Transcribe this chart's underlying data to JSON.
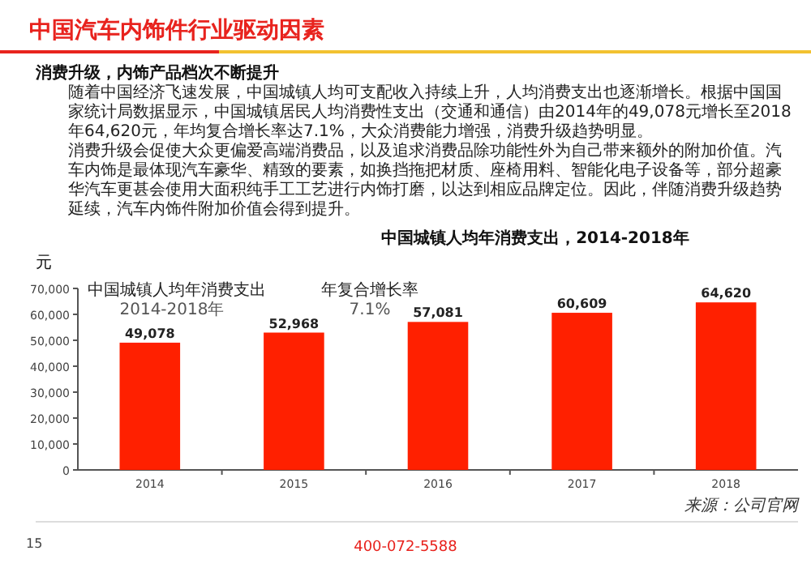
{
  "chart_data": {
    "type": "bar",
    "title": "中国城镇人均年消费支出，2014-2018年",
    "ylabel": "元",
    "categories": [
      "2014",
      "2015",
      "2016",
      "2017",
      "2018"
    ],
    "values": [
      49078,
      52968,
      57081,
      60609,
      64620
    ],
    "value_labels": [
      "49,078",
      "52,968",
      "57,081",
      "60,609",
      "64,620"
    ],
    "color": "#ff2000",
    "ylim": [
      0,
      70000
    ],
    "yticks": [
      0,
      {
        "value": 10000,
        "label": "10,000"
      },
      {
        "value": 20000,
        "label": "20,000"
      },
      {
        "value": 30000,
        "label": "30,000"
      },
      {
        "value": 40000,
        "label": "40,000"
      },
      {
        "value": 50000,
        "label": "50,000"
      },
      {
        "value": 60000,
        "label": "60,000"
      },
      {
        "value": 70000,
        "label": "70,000"
      }
    ],
    "grid": false,
    "annotations": [
      "中国汽车内饰件行业驱动因素",
      "消费升级，内饰产品档次不断提升",
      "随着中国经济飞速发展，中国城镇人均可支配收入持续上升，人均消费支出也逐渐增长。根据中国国家统计局数据显示，中国城镇居民人均消费性支出（交通和通信）由2014年的49,078元增长至2018年64,620元，年均复合增长率达7.1%，大众消费能力增强，消费升级趋势明显。",
      "消费升级会促使大众更偏爱高端消费品，以及追求消费品除功能性外为自己带来额外的附加价值。汽车内饰是最体现汽车豪华、精致的要素，如换挡拖把材质、座椅用料、智能化电子设备等，部分超豪华汽车更甚会使用大面积纯手工工艺进行内饰打磨，以达到相应品牌定位。因此，伴随消费升级趋势延续，汽车内饰件附加价值会得到提升。",
      "中国城镇人均年消费支出",
      "年复合增长率",
      "2014-2018年",
      "7.1%",
      "来源：公司官网",
      "15",
      "400-072-5588"
    ]
  }
}
